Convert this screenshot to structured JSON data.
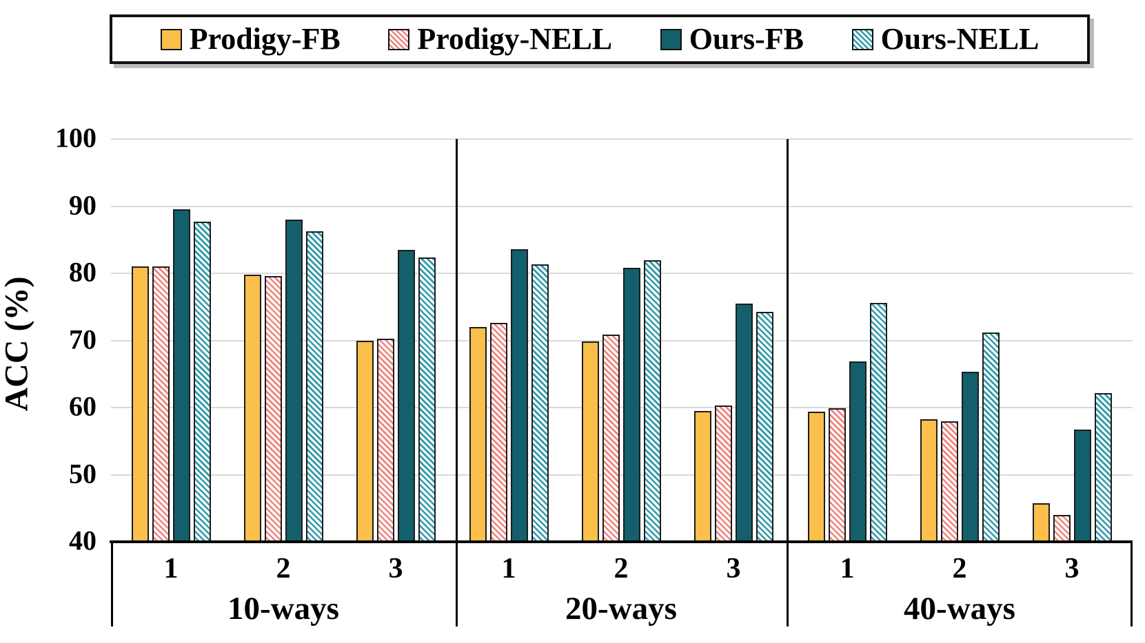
{
  "chart_data": {
    "type": "bar",
    "title": "",
    "ylabel": "ACC (%)",
    "ylim": [
      40,
      100
    ],
    "yticks": [
      40,
      50,
      60,
      70,
      80,
      90,
      100
    ],
    "grid": "horizontal-only",
    "legend_position": "top",
    "groups": [
      {
        "label": "10-ways",
        "ticks": [
          "1",
          "2",
          "3"
        ]
      },
      {
        "label": "20-ways",
        "ticks": [
          "1",
          "2",
          "3"
        ]
      },
      {
        "label": "40-ways",
        "ticks": [
          "1",
          "2",
          "3"
        ]
      }
    ],
    "series": [
      {
        "name": "Prodigy-FB",
        "fill": "solid",
        "color": "#fbbf4b",
        "values": [
          81.0,
          79.8,
          70.0,
          72.0,
          69.8,
          59.5,
          59.4,
          58.3,
          45.7
        ]
      },
      {
        "name": "Prodigy-NELL",
        "fill": "hatch",
        "color": "#f1837b",
        "values": [
          81.0,
          79.6,
          70.3,
          72.6,
          70.9,
          60.3,
          59.9,
          57.9,
          44.0
        ]
      },
      {
        "name": "Ours-FB",
        "fill": "solid",
        "color": "#135f6b",
        "values": [
          89.5,
          88.0,
          83.5,
          83.6,
          80.8,
          75.5,
          66.9,
          65.3,
          56.7
        ]
      },
      {
        "name": "Ours-NELL",
        "fill": "hatch",
        "color": "#2d9aa9",
        "values": [
          87.7,
          86.3,
          82.4,
          81.3,
          81.9,
          74.3,
          75.6,
          71.2,
          62.2
        ]
      }
    ],
    "colors": {
      "bar_outline": "#1c1c1c",
      "gridline": "#d9d9d9",
      "axis": "#000000",
      "hatch_background": "#ffffff"
    }
  }
}
